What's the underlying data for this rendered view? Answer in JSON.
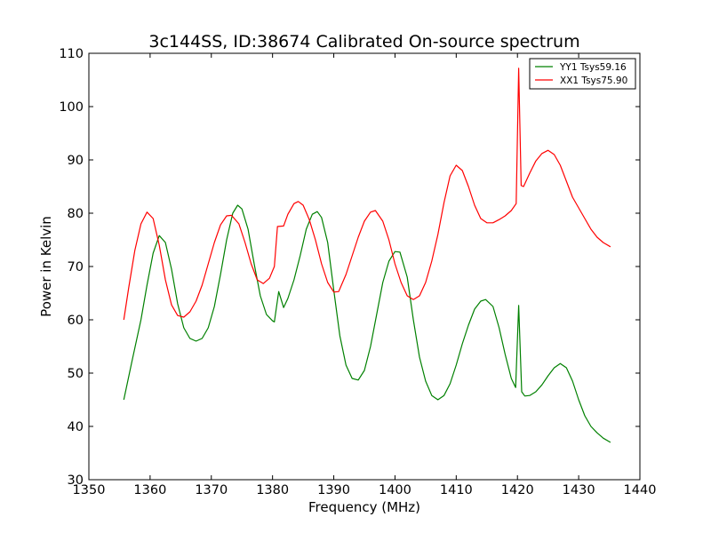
{
  "chart_data": {
    "type": "line",
    "title": "3c144SS, ID:38674 Calibrated On-source spectrum",
    "xlabel": "Frequency (MHz)",
    "ylabel": "Power in Kelvin",
    "xlim": [
      1350,
      1440
    ],
    "ylim": [
      30,
      110
    ],
    "xticks": [
      1350,
      1360,
      1370,
      1380,
      1390,
      1400,
      1410,
      1420,
      1430,
      1440
    ],
    "yticks": [
      30,
      40,
      50,
      60,
      70,
      80,
      90,
      100,
      110
    ],
    "grid": false,
    "legend_position": "top-right",
    "series": [
      {
        "name": "YY1 Tsys59.16",
        "color": "#008000",
        "points": [
          [
            1355.7,
            45.0
          ],
          [
            1357.0,
            52.0
          ],
          [
            1358.5,
            60.0
          ],
          [
            1359.5,
            66.5
          ],
          [
            1360.5,
            72.5
          ],
          [
            1361.5,
            75.8
          ],
          [
            1362.5,
            74.5
          ],
          [
            1363.5,
            69.5
          ],
          [
            1364.5,
            63.0
          ],
          [
            1365.5,
            58.5
          ],
          [
            1366.5,
            56.5
          ],
          [
            1367.5,
            56.0
          ],
          [
            1368.5,
            56.5
          ],
          [
            1369.5,
            58.5
          ],
          [
            1370.5,
            62.5
          ],
          [
            1371.5,
            68.5
          ],
          [
            1372.5,
            75.0
          ],
          [
            1373.5,
            80.0
          ],
          [
            1374.3,
            81.5
          ],
          [
            1375.0,
            80.8
          ],
          [
            1376.0,
            77.0
          ],
          [
            1377.0,
            70.5
          ],
          [
            1378.0,
            64.5
          ],
          [
            1379.0,
            61.0
          ],
          [
            1380.0,
            59.8
          ],
          [
            1380.3,
            59.6
          ],
          [
            1381.0,
            65.3
          ],
          [
            1381.8,
            62.3
          ],
          [
            1382.5,
            64.0
          ],
          [
            1383.5,
            67.5
          ],
          [
            1384.5,
            72.0
          ],
          [
            1385.5,
            77.0
          ],
          [
            1386.5,
            79.8
          ],
          [
            1387.3,
            80.3
          ],
          [
            1388.0,
            79.2
          ],
          [
            1389.0,
            74.5
          ],
          [
            1390.0,
            65.5
          ],
          [
            1391.0,
            57.0
          ],
          [
            1392.0,
            51.5
          ],
          [
            1393.0,
            49.0
          ],
          [
            1394.0,
            48.7
          ],
          [
            1395.0,
            50.5
          ],
          [
            1396.0,
            55.0
          ],
          [
            1397.0,
            61.0
          ],
          [
            1398.0,
            67.0
          ],
          [
            1399.0,
            71.0
          ],
          [
            1400.0,
            72.8
          ],
          [
            1400.8,
            72.7
          ],
          [
            1402.0,
            68.0
          ],
          [
            1403.0,
            60.0
          ],
          [
            1404.0,
            53.0
          ],
          [
            1405.0,
            48.5
          ],
          [
            1406.0,
            45.8
          ],
          [
            1407.0,
            45.0
          ],
          [
            1408.0,
            45.8
          ],
          [
            1409.0,
            48.0
          ],
          [
            1410.0,
            51.5
          ],
          [
            1411.0,
            55.5
          ],
          [
            1412.0,
            59.0
          ],
          [
            1413.0,
            62.0
          ],
          [
            1414.0,
            63.5
          ],
          [
            1414.8,
            63.8
          ],
          [
            1416.0,
            62.5
          ],
          [
            1417.0,
            58.5
          ],
          [
            1418.0,
            53.5
          ],
          [
            1419.0,
            49.0
          ],
          [
            1419.7,
            47.3
          ],
          [
            1420.2,
            62.7
          ],
          [
            1420.7,
            46.5
          ],
          [
            1421.2,
            45.7
          ],
          [
            1422.0,
            45.8
          ],
          [
            1423.0,
            46.5
          ],
          [
            1424.0,
            47.8
          ],
          [
            1425.0,
            49.5
          ],
          [
            1426.0,
            51.0
          ],
          [
            1427.0,
            51.8
          ],
          [
            1428.0,
            51.0
          ],
          [
            1429.0,
            48.5
          ],
          [
            1430.0,
            45.0
          ],
          [
            1431.0,
            42.0
          ],
          [
            1432.0,
            40.0
          ],
          [
            1433.0,
            38.8
          ],
          [
            1434.0,
            37.8
          ],
          [
            1435.2,
            37.0
          ]
        ]
      },
      {
        "name": "XX1 Tsys75.90",
        "color": "#ff0000",
        "points": [
          [
            1355.7,
            60.0
          ],
          [
            1356.5,
            66.0
          ],
          [
            1357.5,
            73.0
          ],
          [
            1358.5,
            78.0
          ],
          [
            1359.5,
            80.2
          ],
          [
            1360.5,
            79.0
          ],
          [
            1361.5,
            74.0
          ],
          [
            1362.5,
            67.5
          ],
          [
            1363.5,
            62.8
          ],
          [
            1364.5,
            60.8
          ],
          [
            1365.5,
            60.5
          ],
          [
            1366.5,
            61.5
          ],
          [
            1367.5,
            63.5
          ],
          [
            1368.5,
            66.5
          ],
          [
            1369.5,
            70.5
          ],
          [
            1370.5,
            74.5
          ],
          [
            1371.5,
            77.8
          ],
          [
            1372.5,
            79.5
          ],
          [
            1373.3,
            79.6
          ],
          [
            1374.5,
            78.0
          ],
          [
            1375.5,
            74.5
          ],
          [
            1376.5,
            70.5
          ],
          [
            1377.5,
            67.5
          ],
          [
            1378.5,
            66.8
          ],
          [
            1379.5,
            67.8
          ],
          [
            1380.3,
            70.0
          ],
          [
            1380.8,
            77.5
          ],
          [
            1381.8,
            77.6
          ],
          [
            1382.5,
            79.8
          ],
          [
            1383.5,
            81.8
          ],
          [
            1384.2,
            82.2
          ],
          [
            1385.0,
            81.5
          ],
          [
            1386.0,
            78.8
          ],
          [
            1387.0,
            75.0
          ],
          [
            1388.0,
            70.5
          ],
          [
            1389.0,
            67.0
          ],
          [
            1390.0,
            65.2
          ],
          [
            1390.8,
            65.3
          ],
          [
            1392.0,
            68.5
          ],
          [
            1393.0,
            72.0
          ],
          [
            1394.0,
            75.5
          ],
          [
            1395.0,
            78.5
          ],
          [
            1396.0,
            80.2
          ],
          [
            1396.8,
            80.5
          ],
          [
            1398.0,
            78.5
          ],
          [
            1399.0,
            75.0
          ],
          [
            1400.0,
            70.5
          ],
          [
            1401.0,
            67.0
          ],
          [
            1402.0,
            64.5
          ],
          [
            1403.0,
            63.8
          ],
          [
            1404.0,
            64.5
          ],
          [
            1405.0,
            67.0
          ],
          [
            1406.0,
            71.0
          ],
          [
            1407.0,
            76.0
          ],
          [
            1408.0,
            82.0
          ],
          [
            1409.0,
            87.0
          ],
          [
            1410.0,
            89.0
          ],
          [
            1411.0,
            88.0
          ],
          [
            1412.0,
            85.0
          ],
          [
            1413.0,
            81.5
          ],
          [
            1414.0,
            79.0
          ],
          [
            1415.0,
            78.2
          ],
          [
            1416.0,
            78.2
          ],
          [
            1417.0,
            78.8
          ],
          [
            1418.0,
            79.5
          ],
          [
            1419.0,
            80.5
          ],
          [
            1419.8,
            81.8
          ],
          [
            1420.2,
            107.2
          ],
          [
            1420.6,
            85.2
          ],
          [
            1421.0,
            85.0
          ],
          [
            1422.0,
            87.5
          ],
          [
            1423.0,
            89.8
          ],
          [
            1424.0,
            91.2
          ],
          [
            1425.0,
            91.8
          ],
          [
            1426.0,
            91.0
          ],
          [
            1427.0,
            89.0
          ],
          [
            1428.0,
            86.0
          ],
          [
            1429.0,
            83.0
          ],
          [
            1430.0,
            81.0
          ],
          [
            1431.0,
            79.0
          ],
          [
            1432.0,
            77.0
          ],
          [
            1433.0,
            75.5
          ],
          [
            1434.0,
            74.5
          ],
          [
            1435.2,
            73.7
          ]
        ]
      }
    ]
  }
}
